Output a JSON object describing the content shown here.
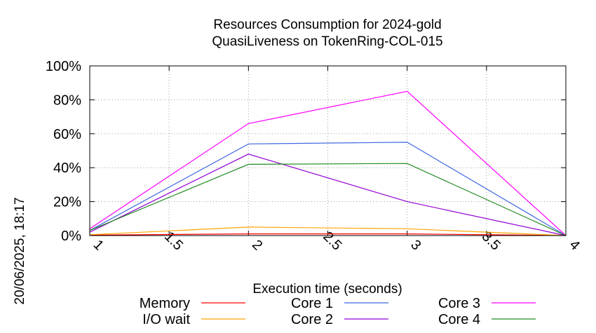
{
  "chart_data": {
    "type": "line",
    "title": [
      "Resources Consumption for 2024-gold",
      "QuasiLiveness on TokenRing-COL-015"
    ],
    "xlabel": "Execution time (seconds)",
    "side_label": "20/06/2025, 18:17",
    "xlim": [
      1,
      4
    ],
    "ylim": [
      0,
      100
    ],
    "x_ticks": [
      1,
      1.5,
      2,
      2.5,
      3,
      3.5,
      4
    ],
    "x_tick_labels": [
      "1",
      "1.5",
      "2",
      "2.5",
      "3",
      "3.5",
      "4"
    ],
    "y_ticks": [
      0,
      20,
      40,
      60,
      80,
      100
    ],
    "y_tick_labels": [
      "0%",
      "20%",
      "40%",
      "60%",
      "80%",
      "100%"
    ],
    "grid": true,
    "legend_position": "bottom",
    "x": [
      1,
      2,
      3,
      4
    ],
    "series": [
      {
        "name": "Memory",
        "color": "#ff0000",
        "values": [
          0.3,
          1.0,
          1.0,
          0.0
        ]
      },
      {
        "name": "I/O wait",
        "color": "#ffa500",
        "values": [
          0.5,
          5.0,
          4.0,
          0.0
        ]
      },
      {
        "name": "Core 1",
        "color": "#4169e1",
        "values": [
          3.0,
          54.0,
          55.0,
          0.0
        ]
      },
      {
        "name": "Core 2",
        "color": "#9400d3",
        "values": [
          2.0,
          48.0,
          20.0,
          0.0
        ]
      },
      {
        "name": "Core 3",
        "color": "#ff00ff",
        "values": [
          4.0,
          66.0,
          85.0,
          0.0
        ]
      },
      {
        "name": "Core 4",
        "color": "#228b22",
        "values": [
          3.0,
          42.0,
          42.5,
          0.0
        ]
      }
    ]
  }
}
